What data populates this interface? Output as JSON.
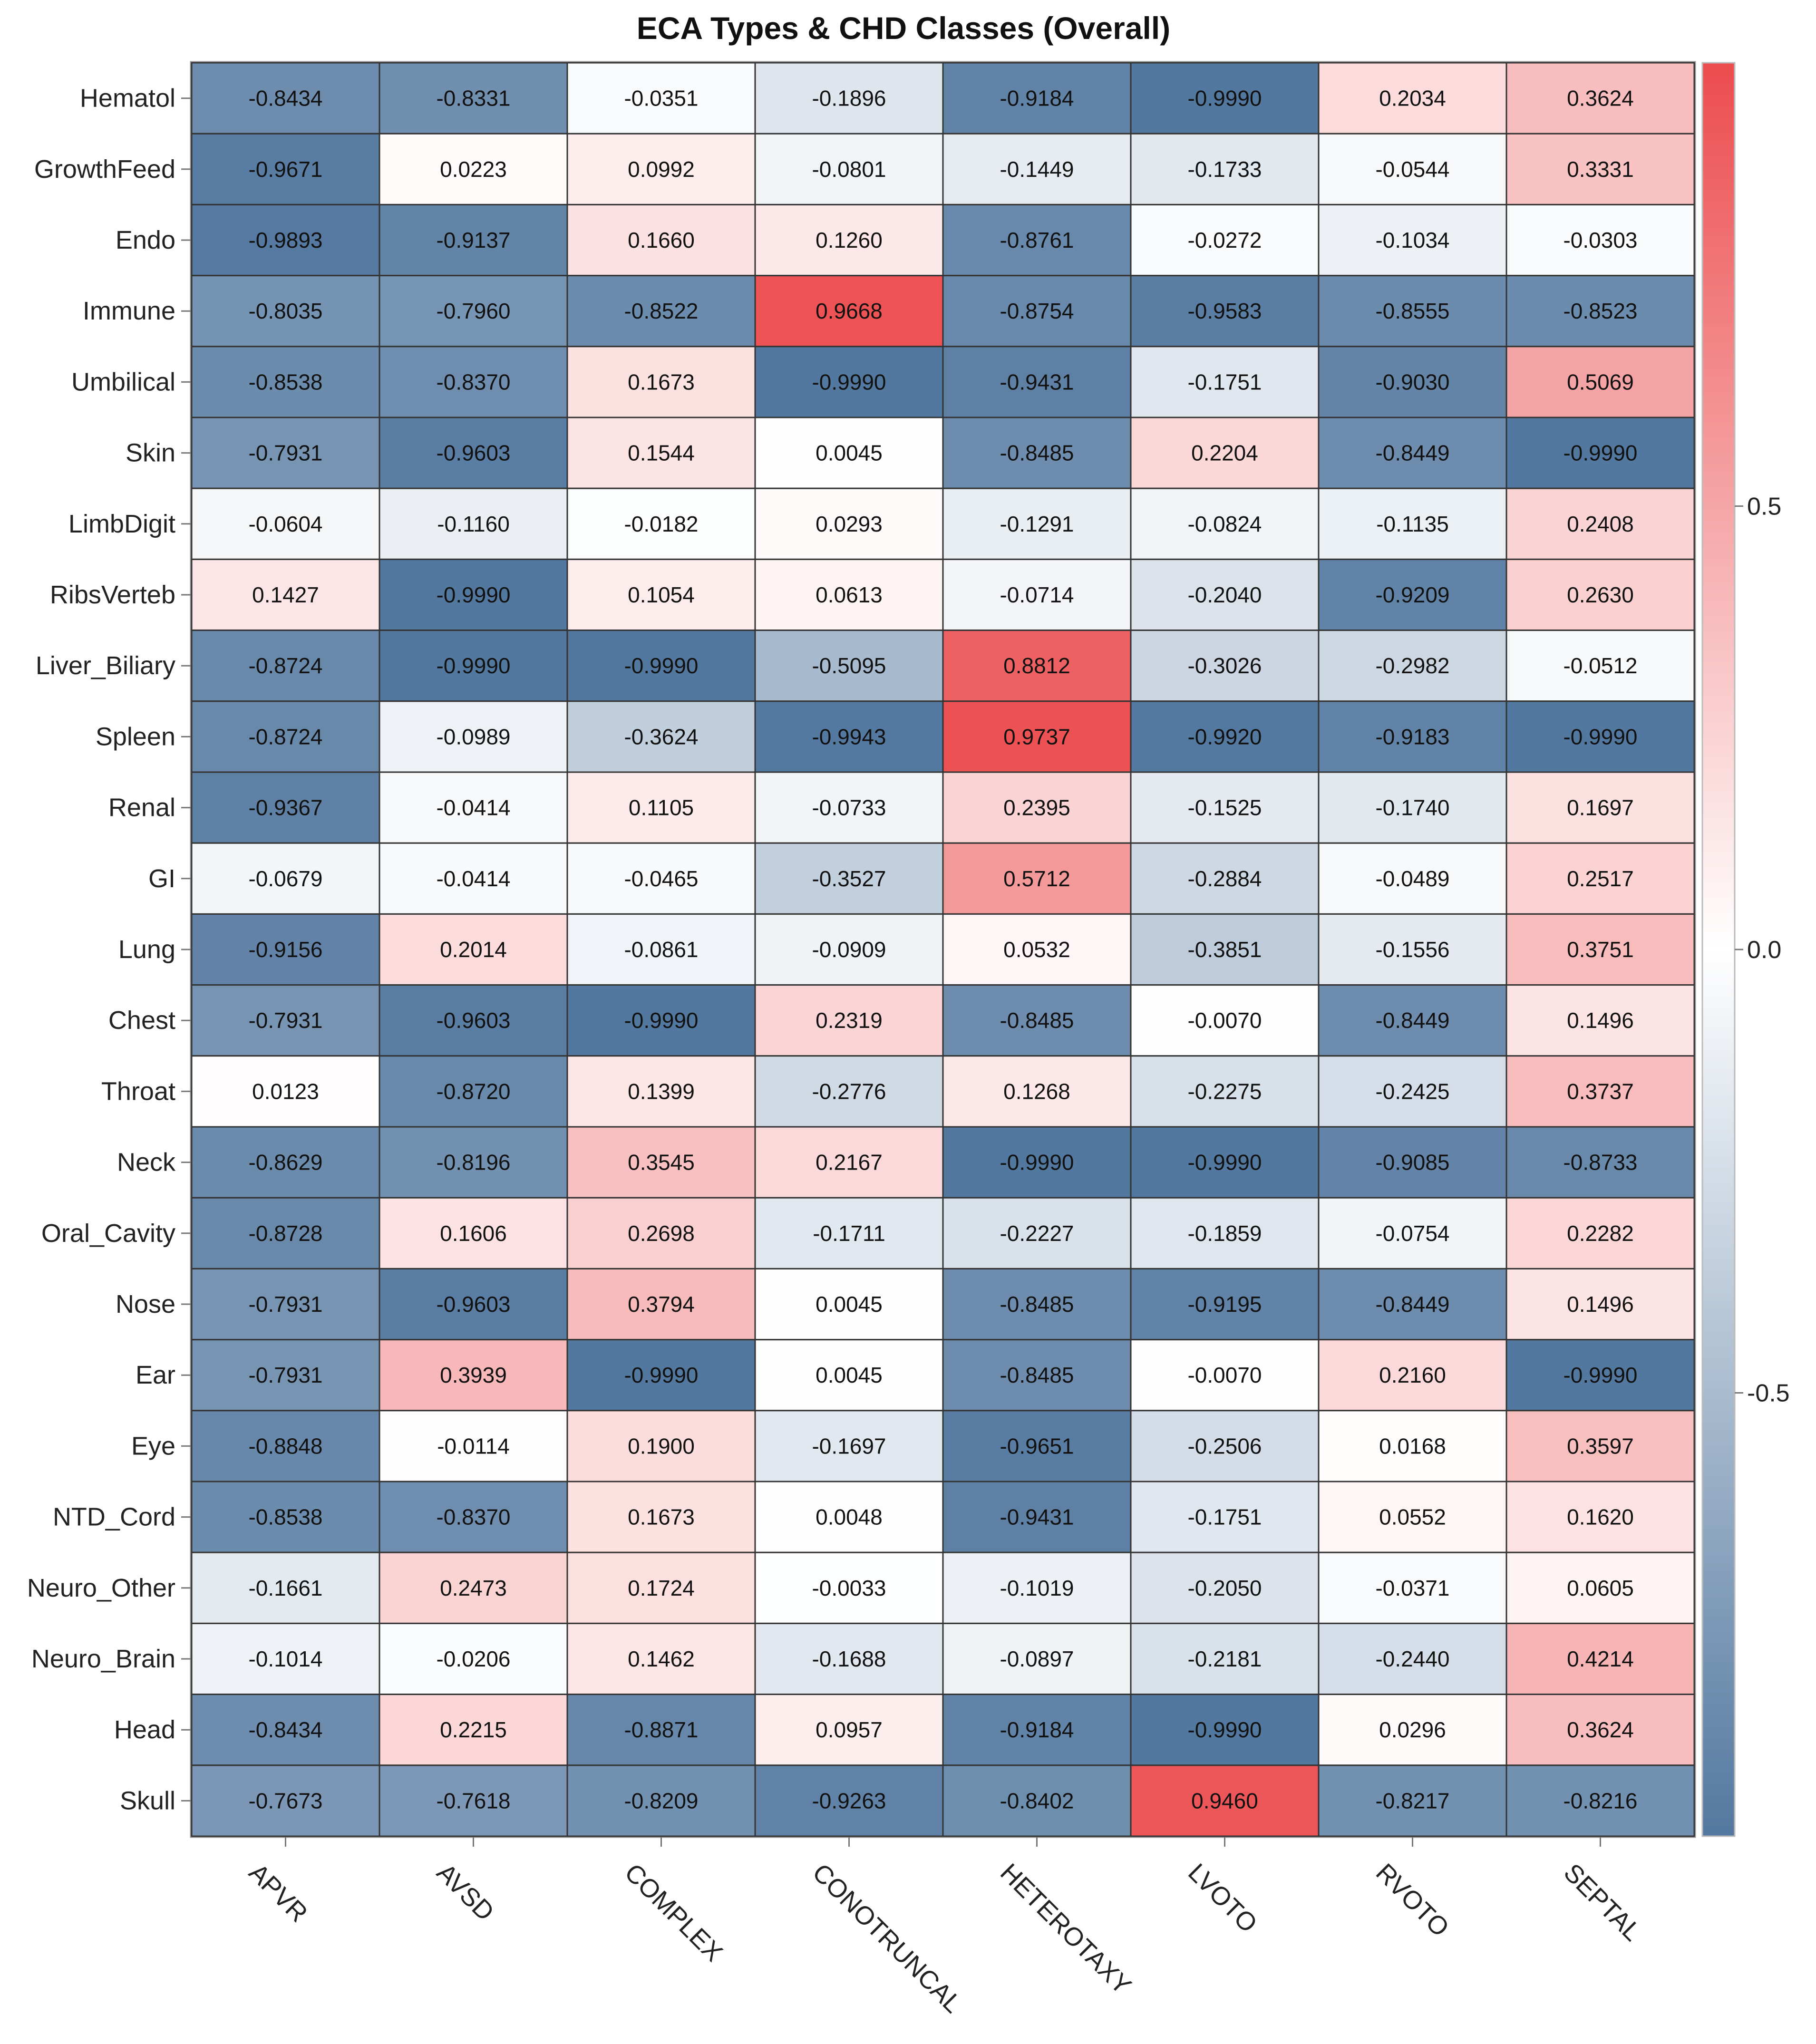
{
  "chart_data": {
    "type": "heatmap",
    "title": "ECA Types & CHD Classes (Overall)",
    "xlabel": "",
    "ylabel": "",
    "columns": [
      "APVR",
      "AVSD",
      "COMPLEX",
      "CONOTRUNCAL",
      "HETEROTAXY",
      "LVOTO",
      "RVOTO",
      "SEPTAL"
    ],
    "rows": [
      "Hematol",
      "GrowthFeed",
      "Endo",
      "Immune",
      "Umbilical",
      "Skin",
      "LimbDigit",
      "RibsVerteb",
      "Liver_Biliary",
      "Spleen",
      "Renal",
      "GI",
      "Lung",
      "Chest",
      "Throat",
      "Neck",
      "Oral_Cavity",
      "Nose",
      "Ear",
      "Eye",
      "NTD_Cord",
      "Neuro_Other",
      "Neuro_Brain",
      "Head",
      "Skull"
    ],
    "values": [
      [
        "-0.8434",
        "-0.8331",
        "-0.0351",
        "-0.1896",
        "-0.9184",
        "-0.9990",
        "0.2034",
        "0.3624"
      ],
      [
        "-0.9671",
        "0.0223",
        "0.0992",
        "-0.0801",
        "-0.1449",
        "-0.1733",
        "-0.0544",
        "0.3331"
      ],
      [
        "-0.9893",
        "-0.9137",
        "0.1660",
        "0.1260",
        "-0.8761",
        "-0.0272",
        "-0.1034",
        "-0.0303"
      ],
      [
        "-0.8035",
        "-0.7960",
        "-0.8522",
        "0.9668",
        "-0.8754",
        "-0.9583",
        "-0.8555",
        "-0.8523"
      ],
      [
        "-0.8538",
        "-0.8370",
        "0.1673",
        "-0.9990",
        "-0.9431",
        "-0.1751",
        "-0.9030",
        "0.5069"
      ],
      [
        "-0.7931",
        "-0.9603",
        "0.1544",
        "0.0045",
        "-0.8485",
        "0.2204",
        "-0.8449",
        "-0.9990"
      ],
      [
        "-0.0604",
        "-0.1160",
        "-0.0182",
        "0.0293",
        "-0.1291",
        "-0.0824",
        "-0.1135",
        "0.2408"
      ],
      [
        "0.1427",
        "-0.9990",
        "0.1054",
        "0.0613",
        "-0.0714",
        "-0.2040",
        "-0.9209",
        "0.2630"
      ],
      [
        "-0.8724",
        "-0.9990",
        "-0.9990",
        "-0.5095",
        "0.8812",
        "-0.3026",
        "-0.2982",
        "-0.0512"
      ],
      [
        "-0.8724",
        "-0.0989",
        "-0.3624",
        "-0.9943",
        "0.9737",
        "-0.9920",
        "-0.9183",
        "-0.9990"
      ],
      [
        "-0.9367",
        "-0.0414",
        "0.1105",
        "-0.0733",
        "0.2395",
        "-0.1525",
        "-0.1740",
        "0.1697"
      ],
      [
        "-0.0679",
        "-0.0414",
        "-0.0465",
        "-0.3527",
        "0.5712",
        "-0.2884",
        "-0.0489",
        "0.2517"
      ],
      [
        "-0.9156",
        "0.2014",
        "-0.0861",
        "-0.0909",
        "0.0532",
        "-0.3851",
        "-0.1556",
        "0.3751"
      ],
      [
        "-0.7931",
        "-0.9603",
        "-0.9990",
        "0.2319",
        "-0.8485",
        "-0.0070",
        "-0.8449",
        "0.1496"
      ],
      [
        "0.0123",
        "-0.8720",
        "0.1399",
        "-0.2776",
        "0.1268",
        "-0.2275",
        "-0.2425",
        "0.3737"
      ],
      [
        "-0.8629",
        "-0.8196",
        "0.3545",
        "0.2167",
        "-0.9990",
        "-0.9990",
        "-0.9085",
        "-0.8733"
      ],
      [
        "-0.8728",
        "0.1606",
        "0.2698",
        "-0.1711",
        "-0.2227",
        "-0.1859",
        "-0.0754",
        "0.2282"
      ],
      [
        "-0.7931",
        "-0.9603",
        "0.3794",
        "0.0045",
        "-0.8485",
        "-0.9195",
        "-0.8449",
        "0.1496"
      ],
      [
        "-0.7931",
        "0.3939",
        "-0.9990",
        "0.0045",
        "-0.8485",
        "-0.0070",
        "0.2160",
        "-0.9990"
      ],
      [
        "-0.8848",
        "-0.0114",
        "0.1900",
        "-0.1697",
        "-0.9651",
        "-0.2506",
        "0.0168",
        "0.3597"
      ],
      [
        "-0.8538",
        "-0.8370",
        "0.1673",
        "0.0048",
        "-0.9431",
        "-0.1751",
        "0.0552",
        "0.1620"
      ],
      [
        "-0.1661",
        "0.2473",
        "0.1724",
        "-0.0033",
        "-0.1019",
        "-0.2050",
        "-0.0371",
        "0.0605"
      ],
      [
        "-0.1014",
        "-0.0206",
        "0.1462",
        "-0.1688",
        "-0.0897",
        "-0.2181",
        "-0.2440",
        "0.4214"
      ],
      [
        "-0.8434",
        "0.2215",
        "-0.8871",
        "0.0957",
        "-0.9184",
        "-0.9990",
        "0.0296",
        "0.3624"
      ],
      [
        "-0.7673",
        "-0.7618",
        "-0.8209",
        "-0.9263",
        "-0.8402",
        "0.9460",
        "-0.8217",
        "-0.8216"
      ]
    ],
    "color_scale": {
      "min": -1.0,
      "mid": 0.0,
      "max": 1.0,
      "low_color": "#53789f",
      "mid_color": "#ffffff",
      "high_color": "#ec4c4e"
    },
    "legend": {
      "placement": "right",
      "ticks": [
        0.5,
        0.0,
        -0.5
      ],
      "tick_labels": [
        "0.5",
        "0.0",
        "-0.5"
      ]
    }
  }
}
